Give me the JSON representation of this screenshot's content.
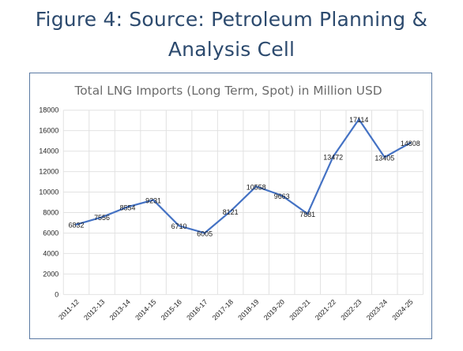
{
  "caption": {
    "line1": "Figure 4: Source: Petroleum Planning &",
    "line2": "Analysis Cell"
  },
  "chart_data": {
    "type": "line",
    "title": "Total LNG Imports (Long Term, Spot) in Million USD",
    "xlabel": "",
    "ylabel": "",
    "categories": [
      "2011-12",
      "2012-13",
      "2013-14",
      "2014-15",
      "2015-16",
      "2016-17",
      "2017-18",
      "2018-19",
      "2019-20",
      "2020-21",
      "2021-22",
      "2022-23",
      "2023-24",
      "2024-25"
    ],
    "series": [
      {
        "values": [
          6832,
          7556,
          8554,
          9231,
          6710,
          6005,
          8121,
          10558,
          9663,
          7881,
          13472,
          17114,
          13405,
          14808
        ],
        "data_labels": [
          "6832",
          "7556",
          "8554",
          "9231",
          "6710",
          "6005",
          "8121",
          "10558",
          "9663",
          "7881",
          "13472",
          "17114",
          "13405",
          "14808"
        ]
      }
    ],
    "ylim": [
      0,
      18000
    ],
    "yticks": [
      "0",
      "2000",
      "4000",
      "6000",
      "8000",
      "10000",
      "12000",
      "14000",
      "16000",
      "18000"
    ],
    "grid": true,
    "legend": "none",
    "line_color": "#4472c4"
  }
}
